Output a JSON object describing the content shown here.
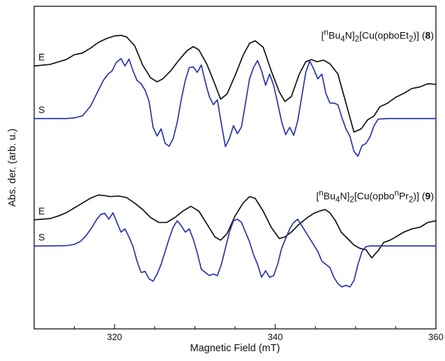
{
  "chart_data": {
    "type": "line",
    "xlabel": "Magnetic Field (mT)",
    "ylabel": "Abs. der. (arb. u.)",
    "xlim": [
      310,
      360
    ],
    "xticks": [
      320,
      340,
      360
    ],
    "ylim": [
      0,
      1
    ],
    "y_ticks_shown": false,
    "grid": false,
    "colors": {
      "experimental": "#111111",
      "simulated": "#2b35a8"
    },
    "panels": [
      {
        "compound_html": "[<sup>n</sup>Bu<sub>4</sub>N]<sub>2</sub>[Cu(opboEt<sub>2</sub>)] (<b>8</b>)",
        "label_experimental": "E",
        "label_simulated": "S",
        "experimental": {
          "x": [
            310,
            312,
            314,
            315,
            316,
            317,
            318,
            319,
            320,
            320.8,
            321.5,
            322.5,
            323.5,
            324.5,
            325.3,
            326,
            327,
            328,
            329,
            329.8,
            330.5,
            331.5,
            332.5,
            333.2,
            334,
            335,
            336,
            336.8,
            337.5,
            338.5,
            339.5,
            340.5,
            341.2,
            342,
            343,
            343.8,
            344.5,
            345.2,
            346,
            346.8,
            347.8,
            348.8,
            349.8,
            350.7,
            351.5,
            352.3,
            353,
            354,
            355,
            356,
            357,
            358,
            359,
            360
          ],
          "y": [
            0.815,
            0.82,
            0.835,
            0.85,
            0.855,
            0.87,
            0.888,
            0.9,
            0.908,
            0.91,
            0.905,
            0.878,
            0.818,
            0.778,
            0.766,
            0.775,
            0.8,
            0.833,
            0.862,
            0.875,
            0.865,
            0.82,
            0.758,
            0.712,
            0.728,
            0.785,
            0.848,
            0.885,
            0.893,
            0.873,
            0.8,
            0.735,
            0.705,
            0.72,
            0.79,
            0.828,
            0.835,
            0.828,
            0.833,
            0.822,
            0.79,
            0.7,
            0.61,
            0.62,
            0.648,
            0.66,
            0.688,
            0.7,
            0.718,
            0.73,
            0.745,
            0.75,
            0.76,
            0.758
          ]
        },
        "simulated": {
          "x": [
            310,
            312,
            314,
            315,
            316,
            317,
            317.8,
            318.6,
            319.2,
            319.7,
            320.2,
            320.8,
            321.3,
            321.8,
            322.3,
            322.8,
            323.3,
            323.8,
            324.3,
            324.8,
            325.3,
            325.8,
            326.3,
            326.8,
            327.3,
            327.8,
            328.3,
            328.8,
            329.3,
            329.8,
            330.3,
            330.8,
            331.3,
            331.8,
            332.3,
            332.8,
            333.3,
            333.8,
            334.3,
            334.8,
            335.3,
            335.8,
            336.3,
            336.8,
            337.3,
            337.8,
            338.3,
            338.8,
            339.3,
            339.8,
            340.3,
            340.8,
            341.3,
            341.8,
            342.3,
            342.8,
            343.3,
            343.8,
            344.3,
            344.8,
            345.3,
            345.8,
            346.3,
            346.8,
            347.3,
            347.8,
            348.3,
            348.8,
            349.3,
            349.8,
            350.3,
            350.8,
            351.3,
            351.8,
            352.3,
            352.8,
            353.3,
            354,
            356,
            358,
            360
          ],
          "y": [
            0.652,
            0.652,
            0.652,
            0.654,
            0.66,
            0.69,
            0.73,
            0.77,
            0.79,
            0.8,
            0.825,
            0.838,
            0.815,
            0.836,
            0.8,
            0.77,
            0.76,
            0.74,
            0.705,
            0.625,
            0.598,
            0.62,
            0.575,
            0.566,
            0.59,
            0.64,
            0.71,
            0.77,
            0.81,
            0.812,
            0.795,
            0.818,
            0.765,
            0.72,
            0.695,
            0.71,
            0.635,
            0.565,
            0.59,
            0.63,
            0.605,
            0.626,
            0.7,
            0.775,
            0.81,
            0.832,
            0.8,
            0.755,
            0.79,
            0.755,
            0.7,
            0.642,
            0.602,
            0.625,
            0.6,
            0.645,
            0.72,
            0.795,
            0.83,
            0.805,
            0.775,
            0.79,
            0.73,
            0.7,
            0.7,
            0.695,
            0.655,
            0.62,
            0.597,
            0.55,
            0.535,
            0.568,
            0.575,
            0.595,
            0.63,
            0.65,
            0.651,
            0.652,
            0.652,
            0.652,
            0.652
          ]
        }
      },
      {
        "compound_html": "[<sup>n</sup>Bu<sub>4</sub>N]<sub>2</sub>[Cu(opbo<sup>n</sup>Pr<sub>2</sub>)] (<b>9</b>)",
        "label_experimental": "E",
        "label_simulated": "S",
        "experimental": {
          "x": [
            310,
            312,
            313,
            314,
            315,
            316,
            317,
            318,
            318.8,
            319.5,
            320.5,
            321.5,
            322.5,
            323.5,
            324.5,
            325.5,
            326.5,
            327.5,
            328.5,
            329.5,
            330.5,
            331.5,
            332.5,
            333.2,
            334,
            335,
            336,
            336.8,
            337.5,
            338.5,
            339.5,
            340.5,
            341.2,
            342,
            343,
            344,
            344.8,
            345.5,
            346.2,
            346.8,
            347.5,
            348.2,
            349,
            349.8,
            350.5,
            351.3,
            352,
            352.8,
            353.5,
            354.3,
            355,
            356,
            357,
            358,
            359,
            360
          ],
          "y": [
            0.338,
            0.342,
            0.35,
            0.36,
            0.375,
            0.39,
            0.405,
            0.415,
            0.413,
            0.41,
            0.412,
            0.407,
            0.39,
            0.37,
            0.345,
            0.33,
            0.33,
            0.345,
            0.365,
            0.38,
            0.365,
            0.325,
            0.285,
            0.275,
            0.295,
            0.35,
            0.39,
            0.41,
            0.405,
            0.365,
            0.315,
            0.28,
            0.285,
            0.3,
            0.325,
            0.345,
            0.358,
            0.365,
            0.37,
            0.36,
            0.335,
            0.3,
            0.28,
            0.26,
            0.25,
            0.245,
            0.22,
            0.242,
            0.268,
            0.275,
            0.285,
            0.3,
            0.31,
            0.315,
            0.33,
            0.335
          ]
        },
        "simulated": {
          "x": [
            310,
            312,
            314,
            315,
            315.8,
            316.5,
            317.2,
            317.8,
            318.3,
            318.8,
            319.3,
            319.8,
            320.3,
            320.8,
            321.3,
            321.8,
            322.3,
            322.8,
            323.3,
            323.8,
            324.3,
            324.8,
            325.3,
            325.8,
            326.3,
            326.8,
            327.3,
            327.8,
            328.3,
            328.8,
            329.3,
            329.8,
            330.3,
            330.8,
            331.3,
            331.8,
            332.3,
            332.8,
            333.3,
            333.8,
            334.3,
            334.8,
            335.3,
            335.8,
            336.3,
            336.8,
            337.3,
            337.8,
            338.3,
            338.8,
            339.3,
            339.8,
            340.3,
            340.8,
            341.3,
            341.8,
            342.3,
            342.8,
            343.3,
            343.8,
            344.3,
            344.8,
            345.3,
            345.8,
            346.3,
            346.8,
            347.3,
            347.8,
            348.3,
            348.8,
            349.3,
            349.8,
            350.3,
            350.8,
            351.3,
            351.8,
            352.3,
            353,
            354,
            356,
            358,
            360
          ],
          "y": [
            0.257,
            0.257,
            0.258,
            0.262,
            0.272,
            0.29,
            0.315,
            0.34,
            0.355,
            0.358,
            0.34,
            0.36,
            0.33,
            0.3,
            0.31,
            0.285,
            0.255,
            0.21,
            0.175,
            0.178,
            0.155,
            0.148,
            0.17,
            0.2,
            0.24,
            0.28,
            0.315,
            0.335,
            0.32,
            0.3,
            0.31,
            0.278,
            0.235,
            0.185,
            0.175,
            0.165,
            0.17,
            0.165,
            0.2,
            0.25,
            0.3,
            0.335,
            0.34,
            0.33,
            0.3,
            0.27,
            0.23,
            0.2,
            0.16,
            0.18,
            0.16,
            0.165,
            0.2,
            0.25,
            0.28,
            0.31,
            0.33,
            0.34,
            0.32,
            0.3,
            0.28,
            0.26,
            0.24,
            0.21,
            0.2,
            0.19,
            0.16,
            0.14,
            0.13,
            0.135,
            0.13,
            0.15,
            0.2,
            0.24,
            0.255,
            0.257,
            0.257,
            0.257,
            0.257,
            0.257,
            0.257,
            0.257
          ]
        }
      }
    ]
  }
}
